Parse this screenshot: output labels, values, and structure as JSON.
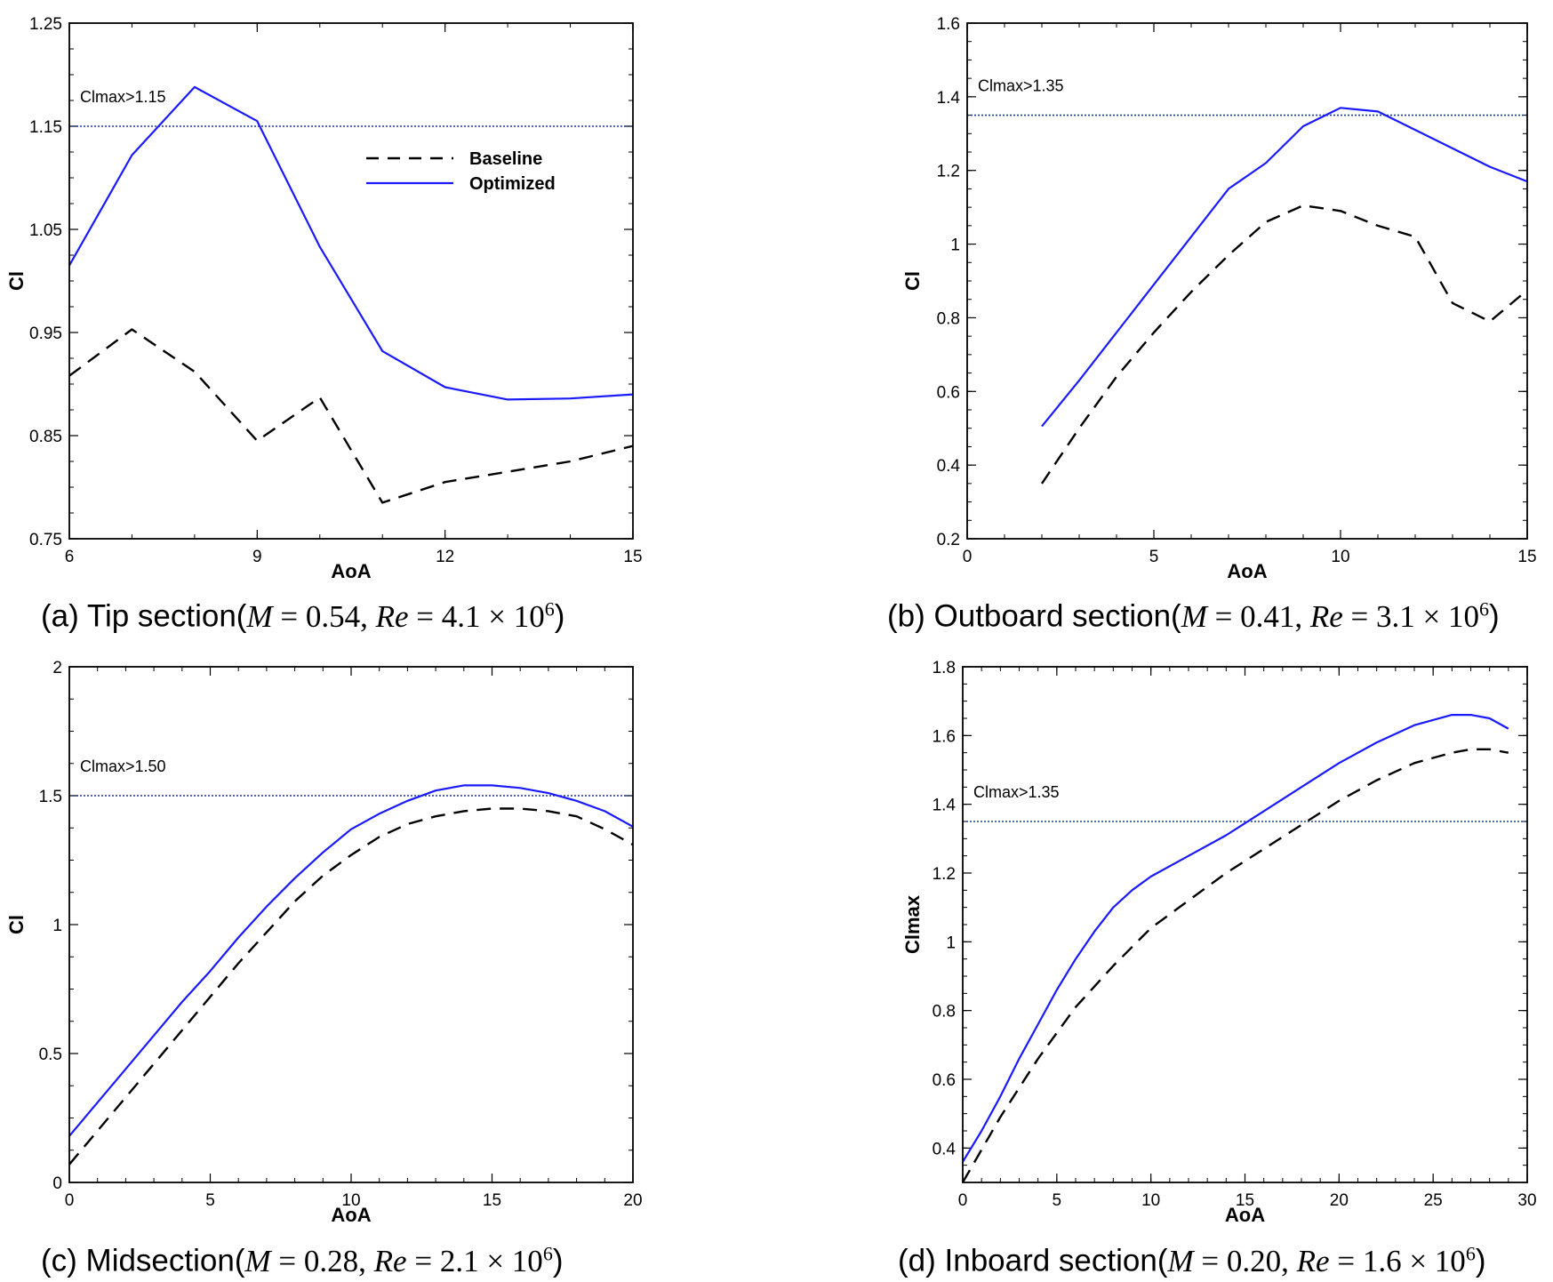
{
  "captions": [
    {
      "label": "(a) Tip section(",
      "M": "0.54",
      "Re_mant": "4.1",
      "Re_exp": "6"
    },
    {
      "label": "(b) Outboard section(",
      "M": "0.41",
      "Re_mant": "3.1",
      "Re_exp": "6"
    },
    {
      "label": "(c) Midsection(",
      "M": "0.28",
      "Re_mant": "2.1",
      "Re_exp": "6"
    },
    {
      "label": "(d) Inboard section(",
      "M": "0.20",
      "Re_mant": "1.6",
      "Re_exp": "6"
    }
  ],
  "colors": {
    "baseline": "#000000",
    "optimized": "#1a1aff",
    "threshold": "#1a3a8a"
  },
  "chart_data": [
    {
      "type": "line",
      "xlabel": "AoA",
      "ylabel": "Cl",
      "xlim": [
        6,
        15
      ],
      "ylim": [
        0.75,
        1.25
      ],
      "xticks": [
        "6",
        "9",
        "12",
        "15"
      ],
      "yticks": [
        "0.75",
        "0.85",
        "0.95",
        "1.05",
        "1.15",
        "1.25"
      ],
      "threshold": {
        "y": 1.15,
        "label": "Clmax>1.15"
      },
      "legend": {
        "position": "upper-right",
        "entries": [
          "Baseline",
          "Optimized"
        ]
      },
      "series": [
        {
          "name": "Baseline",
          "style": "dashed",
          "x": [
            6,
            7,
            8,
            9,
            10,
            11,
            12,
            13,
            14,
            15
          ],
          "y": [
            0.908,
            0.953,
            0.912,
            0.845,
            0.887,
            0.785,
            0.805,
            0.815,
            0.825,
            0.84
          ]
        },
        {
          "name": "Optimized",
          "style": "solid",
          "x": [
            6,
            7,
            8,
            9,
            10,
            11,
            12,
            13,
            14,
            15
          ],
          "y": [
            1.015,
            1.122,
            1.188,
            1.155,
            1.033,
            0.932,
            0.897,
            0.885,
            0.886,
            0.89
          ]
        }
      ]
    },
    {
      "type": "line",
      "xlabel": "AoA",
      "ylabel": "Cl",
      "xlim": [
        0,
        15
      ],
      "ylim": [
        0.2,
        1.6
      ],
      "xticks": [
        "0",
        "5",
        "10",
        "15"
      ],
      "yticks": [
        "0.2",
        "0.4",
        "0.6",
        "0.8",
        "1",
        "1.2",
        "1.4",
        "1.6"
      ],
      "threshold": {
        "y": 1.35,
        "label": "Clmax>1.35"
      },
      "series": [
        {
          "name": "Baseline",
          "style": "dashed",
          "x": [
            2,
            3,
            4,
            5,
            6,
            7,
            8,
            9,
            10,
            11,
            12,
            13,
            14,
            15
          ],
          "y": [
            0.35,
            0.5,
            0.64,
            0.76,
            0.87,
            0.97,
            1.06,
            1.105,
            1.09,
            1.05,
            1.02,
            0.84,
            0.79,
            0.875
          ]
        },
        {
          "name": "Optimized",
          "style": "solid",
          "x": [
            2,
            3,
            4,
            5,
            6,
            7,
            8,
            9,
            10,
            11,
            12,
            13,
            14,
            15
          ],
          "y": [
            0.505,
            0.63,
            0.76,
            0.89,
            1.02,
            1.15,
            1.22,
            1.32,
            1.37,
            1.36,
            1.31,
            1.26,
            1.21,
            1.17
          ]
        }
      ]
    },
    {
      "type": "line",
      "xlabel": "AoA",
      "ylabel": "Cl",
      "xlim": [
        0,
        20
      ],
      "ylim": [
        0,
        2
      ],
      "xticks": [
        "0",
        "5",
        "10",
        "15",
        "20"
      ],
      "yticks": [
        "0",
        "0.5",
        "1",
        "1.5",
        "2"
      ],
      "threshold": {
        "y": 1.5,
        "label": "Clmax>1.50"
      },
      "series": [
        {
          "name": "Baseline",
          "style": "dashed",
          "x": [
            0,
            1,
            2,
            3,
            4,
            5,
            6,
            7,
            8,
            9,
            10,
            11,
            12,
            13,
            14,
            15,
            16,
            17,
            18,
            19,
            20
          ],
          "y": [
            0.07,
            0.2,
            0.33,
            0.46,
            0.59,
            0.72,
            0.85,
            0.97,
            1.09,
            1.19,
            1.27,
            1.34,
            1.39,
            1.42,
            1.44,
            1.45,
            1.45,
            1.44,
            1.42,
            1.37,
            1.31
          ]
        },
        {
          "name": "Optimized",
          "style": "solid",
          "x": [
            0,
            1,
            2,
            3,
            4,
            5,
            6,
            7,
            8,
            9,
            10,
            11,
            12,
            13,
            14,
            15,
            16,
            17,
            18,
            19,
            20
          ],
          "y": [
            0.18,
            0.31,
            0.44,
            0.57,
            0.7,
            0.82,
            0.95,
            1.07,
            1.18,
            1.28,
            1.37,
            1.43,
            1.48,
            1.52,
            1.54,
            1.54,
            1.53,
            1.51,
            1.48,
            1.44,
            1.38
          ]
        }
      ]
    },
    {
      "type": "line",
      "xlabel": "AoA",
      "ylabel": "Clmax",
      "xlim": [
        0,
        30
      ],
      "ylim": [
        0.3,
        1.8
      ],
      "xticks": [
        "0",
        "5",
        "10",
        "15",
        "20",
        "25",
        "30"
      ],
      "yticks": [
        "0.4",
        "0.6",
        "0.8",
        "1",
        "1.2",
        "1.4",
        "1.6",
        "1.8"
      ],
      "threshold": {
        "y": 1.35,
        "label": "Clmax>1.35"
      },
      "series": [
        {
          "name": "Baseline",
          "style": "dashed",
          "x": [
            0,
            2,
            4,
            6,
            8,
            10,
            12,
            14,
            16,
            18,
            20,
            22,
            24,
            26,
            27,
            28,
            29
          ],
          "y": [
            0.3,
            0.49,
            0.66,
            0.81,
            0.93,
            1.04,
            1.12,
            1.2,
            1.27,
            1.34,
            1.41,
            1.47,
            1.52,
            1.55,
            1.56,
            1.56,
            1.55
          ]
        },
        {
          "name": "Optimized",
          "style": "solid",
          "x": [
            0,
            1,
            2,
            3,
            4,
            5,
            6,
            7,
            8,
            9,
            10,
            12,
            14,
            16,
            18,
            20,
            22,
            24,
            26,
            27,
            28,
            29
          ],
          "y": [
            0.36,
            0.45,
            0.55,
            0.66,
            0.76,
            0.86,
            0.95,
            1.03,
            1.1,
            1.15,
            1.19,
            1.25,
            1.31,
            1.38,
            1.45,
            1.52,
            1.58,
            1.63,
            1.66,
            1.66,
            1.65,
            1.62
          ]
        }
      ]
    }
  ]
}
